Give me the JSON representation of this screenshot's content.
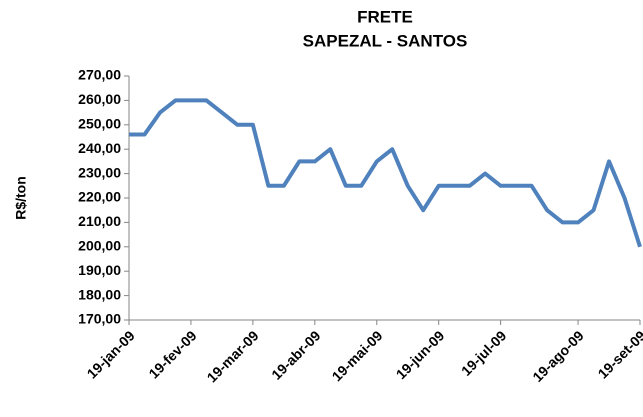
{
  "chart_data": {
    "type": "line",
    "title": "FRETE",
    "subtitle": "SAPEZAL - SANTOS",
    "y_label": "R$/ton",
    "categories": [
      "19-jan-09",
      null,
      null,
      null,
      "19-fev-09",
      null,
      null,
      null,
      "19-mar-09",
      null,
      null,
      null,
      "19-abr-09",
      null,
      null,
      null,
      "19-mai-09",
      null,
      null,
      null,
      "19-jun-09",
      null,
      null,
      null,
      "19-jul-09",
      null,
      null,
      null,
      null,
      "19-ago-09",
      null,
      null,
      null,
      "19-set-09"
    ],
    "series": [
      {
        "name": "Frete",
        "color": "#4f81bd",
        "values": [
          246,
          246,
          255,
          260,
          260,
          260,
          255,
          250,
          250,
          225,
          225,
          235,
          235,
          240,
          225,
          225,
          235,
          240,
          225,
          215,
          225,
          225,
          225,
          230,
          225,
          225,
          225,
          215,
          210,
          210,
          215,
          235,
          220,
          200
        ]
      }
    ],
    "ylim": [
      170,
      270
    ],
    "yticks": [
      {
        "value": 170,
        "label": "170,00"
      },
      {
        "value": 180,
        "label": "180,00"
      },
      {
        "value": 190,
        "label": "190,00"
      },
      {
        "value": 200,
        "label": "200,00"
      },
      {
        "value": 210,
        "label": "210,00"
      },
      {
        "value": 220,
        "label": "220,00"
      },
      {
        "value": 230,
        "label": "230,00"
      },
      {
        "value": 240,
        "label": "240,00"
      },
      {
        "value": 250,
        "label": "250,00"
      },
      {
        "value": 260,
        "label": "260,00"
      },
      {
        "value": 270,
        "label": "270,00"
      }
    ],
    "grid": false
  }
}
